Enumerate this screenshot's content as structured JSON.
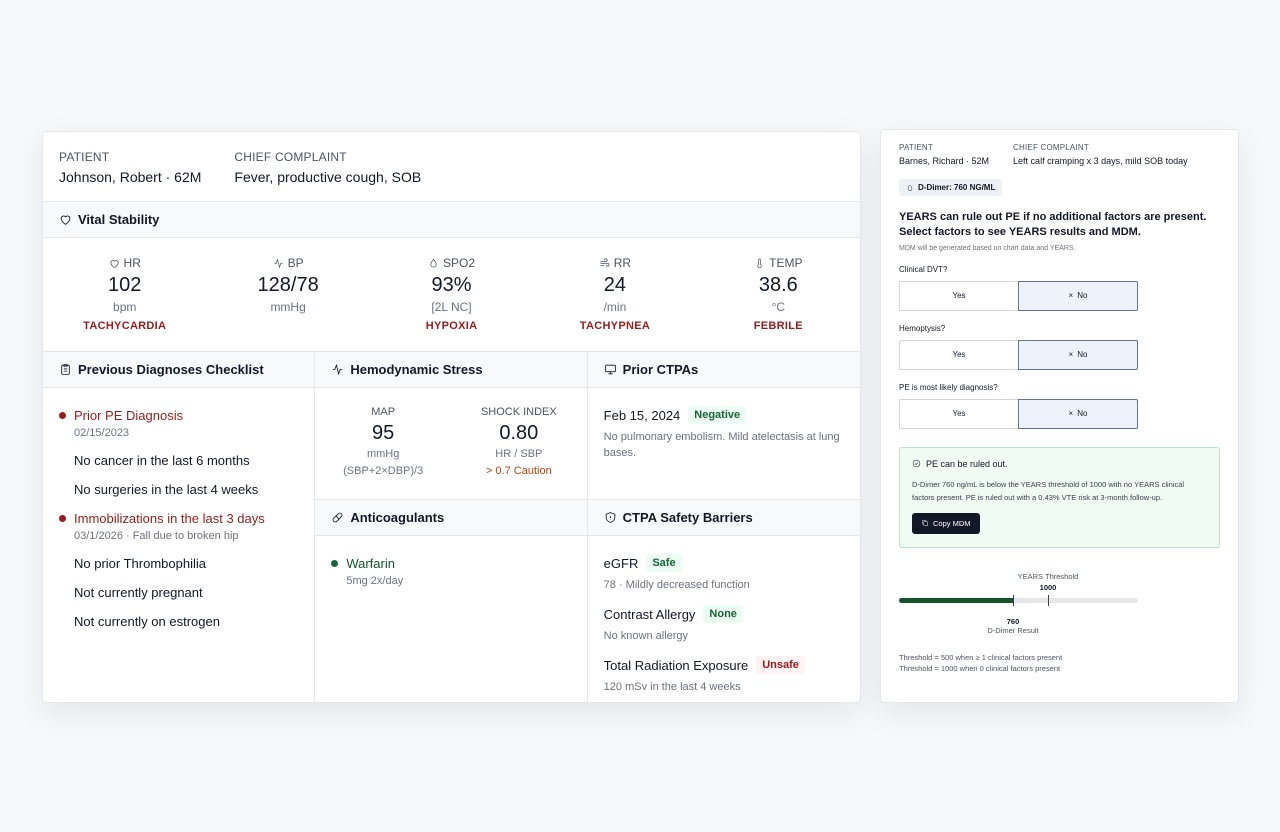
{
  "left": {
    "patient_label": "PATIENT",
    "patient_value": "Johnson, Robert · 62M",
    "complaint_label": "CHIEF COMPLAINT",
    "complaint_value": "Fever, productive cough, SOB",
    "vital_stability_title": "Vital Stability",
    "vitals": [
      {
        "label": "HR",
        "value": "102",
        "unit": "bpm",
        "flag": "TACHYCARDIA",
        "icon": "heart-icon"
      },
      {
        "label": "BP",
        "value": "128/78",
        "unit": "mmHg",
        "flag": "",
        "icon": "activity-icon"
      },
      {
        "label": "SPO2",
        "value": "93%",
        "unit": "[2L NC]",
        "flag": "HYPOXIA",
        "icon": "drop-icon"
      },
      {
        "label": "RR",
        "value": "24",
        "unit": "/min",
        "flag": "TACHYPNEA",
        "icon": "wind-icon"
      },
      {
        "label": "TEMP",
        "value": "38.6",
        "unit": "°C",
        "flag": "FEBRILE",
        "icon": "thermometer-icon"
      }
    ],
    "checklist_title": "Previous Diagnoses Checklist",
    "checklist": [
      {
        "text": "Prior PE Diagnosis",
        "sub": "02/15/2023",
        "alert": true
      },
      {
        "text": "No cancer in the last 6 months",
        "sub": "",
        "alert": false
      },
      {
        "text": "No surgeries in the last 4 weeks",
        "sub": "",
        "alert": false
      },
      {
        "text": "Immobilizations in the last 3 days",
        "sub": "03/1/2026 · Fall due to broken hip",
        "alert": true
      },
      {
        "text": "No prior Thrombophilia",
        "sub": "",
        "alert": false
      },
      {
        "text": "Not currently pregnant",
        "sub": "",
        "alert": false
      },
      {
        "text": "Not currently on estrogen",
        "sub": "",
        "alert": false
      }
    ],
    "hemo_title": "Hemodynamic Stress",
    "map": {
      "label": "MAP",
      "value": "95",
      "unit": "mmHg",
      "note": "(SBP+2×DBP)/3"
    },
    "shock": {
      "label": "SHOCK INDEX",
      "value": "0.80",
      "unit": "HR / SBP",
      "note": "> 0.7 Caution"
    },
    "ctpa_title": "Prior CTPAs",
    "ctpa": {
      "date": "Feb 15, 2024",
      "badge": "Negative",
      "desc": "No pulmonary embolism. Mild atelectasis at lung bases."
    },
    "anti_title": "Anticoagulants",
    "anti": {
      "name": "Warfarin",
      "dose": "5mg 2x/day"
    },
    "barriers_title": "CTPA Safety Barriers",
    "barriers": [
      {
        "name": "eGFR",
        "badge": "Safe",
        "badge_type": "safe",
        "sub": "78 · Mildly decreased function"
      },
      {
        "name": "Contrast Allergy",
        "badge": "None",
        "badge_type": "safe",
        "sub": "No known allergy"
      },
      {
        "name": "Total Radiation Exposure",
        "badge": "Unsafe",
        "badge_type": "unsafe",
        "sub": "120 mSv in the last 4 weeks"
      }
    ]
  },
  "right": {
    "patient_label": "PATIENT",
    "patient_value": "Barnes, Richard · 52M",
    "complaint_label": "CHIEF COMPLAINT",
    "complaint_value": "Left calf cramping x 3 days, mild SOB today",
    "ddimer_badge": "D-Dimer: 760 NG/ML",
    "years_title": "YEARS can rule out PE if no additional factors are present. Select factors to see YEARS results and MDM.",
    "years_note": "MDM will be generated based on chart data and YEARS.",
    "questions": [
      {
        "label": "Clinical DVT?",
        "yes": "Yes",
        "no": "No"
      },
      {
        "label": "Hemoptysis?",
        "yes": "Yes",
        "no": "No"
      },
      {
        "label": "PE is most likely diagnosis?",
        "yes": "Yes",
        "no": "No"
      }
    ],
    "result_title": "PE can be ruled out.",
    "result_body": "D-Dimer 760 ng/mL is below the YEARS threshold of 1000 with no YEARS clinical factors present. PE is ruled out with a 0.43% VTE risk at 3-month follow-up.",
    "copy_label": "Copy MDM",
    "threshold_label": "YEARS Threshold",
    "threshold_value": "1000",
    "result_value": "760",
    "result_label": "D-Dimer Result",
    "threshold_max": 1600,
    "note1": "Threshold = 500 when ≥ 1 clinical factors present",
    "note2": "Threshold = 1000 when 0 clinical factors present"
  }
}
